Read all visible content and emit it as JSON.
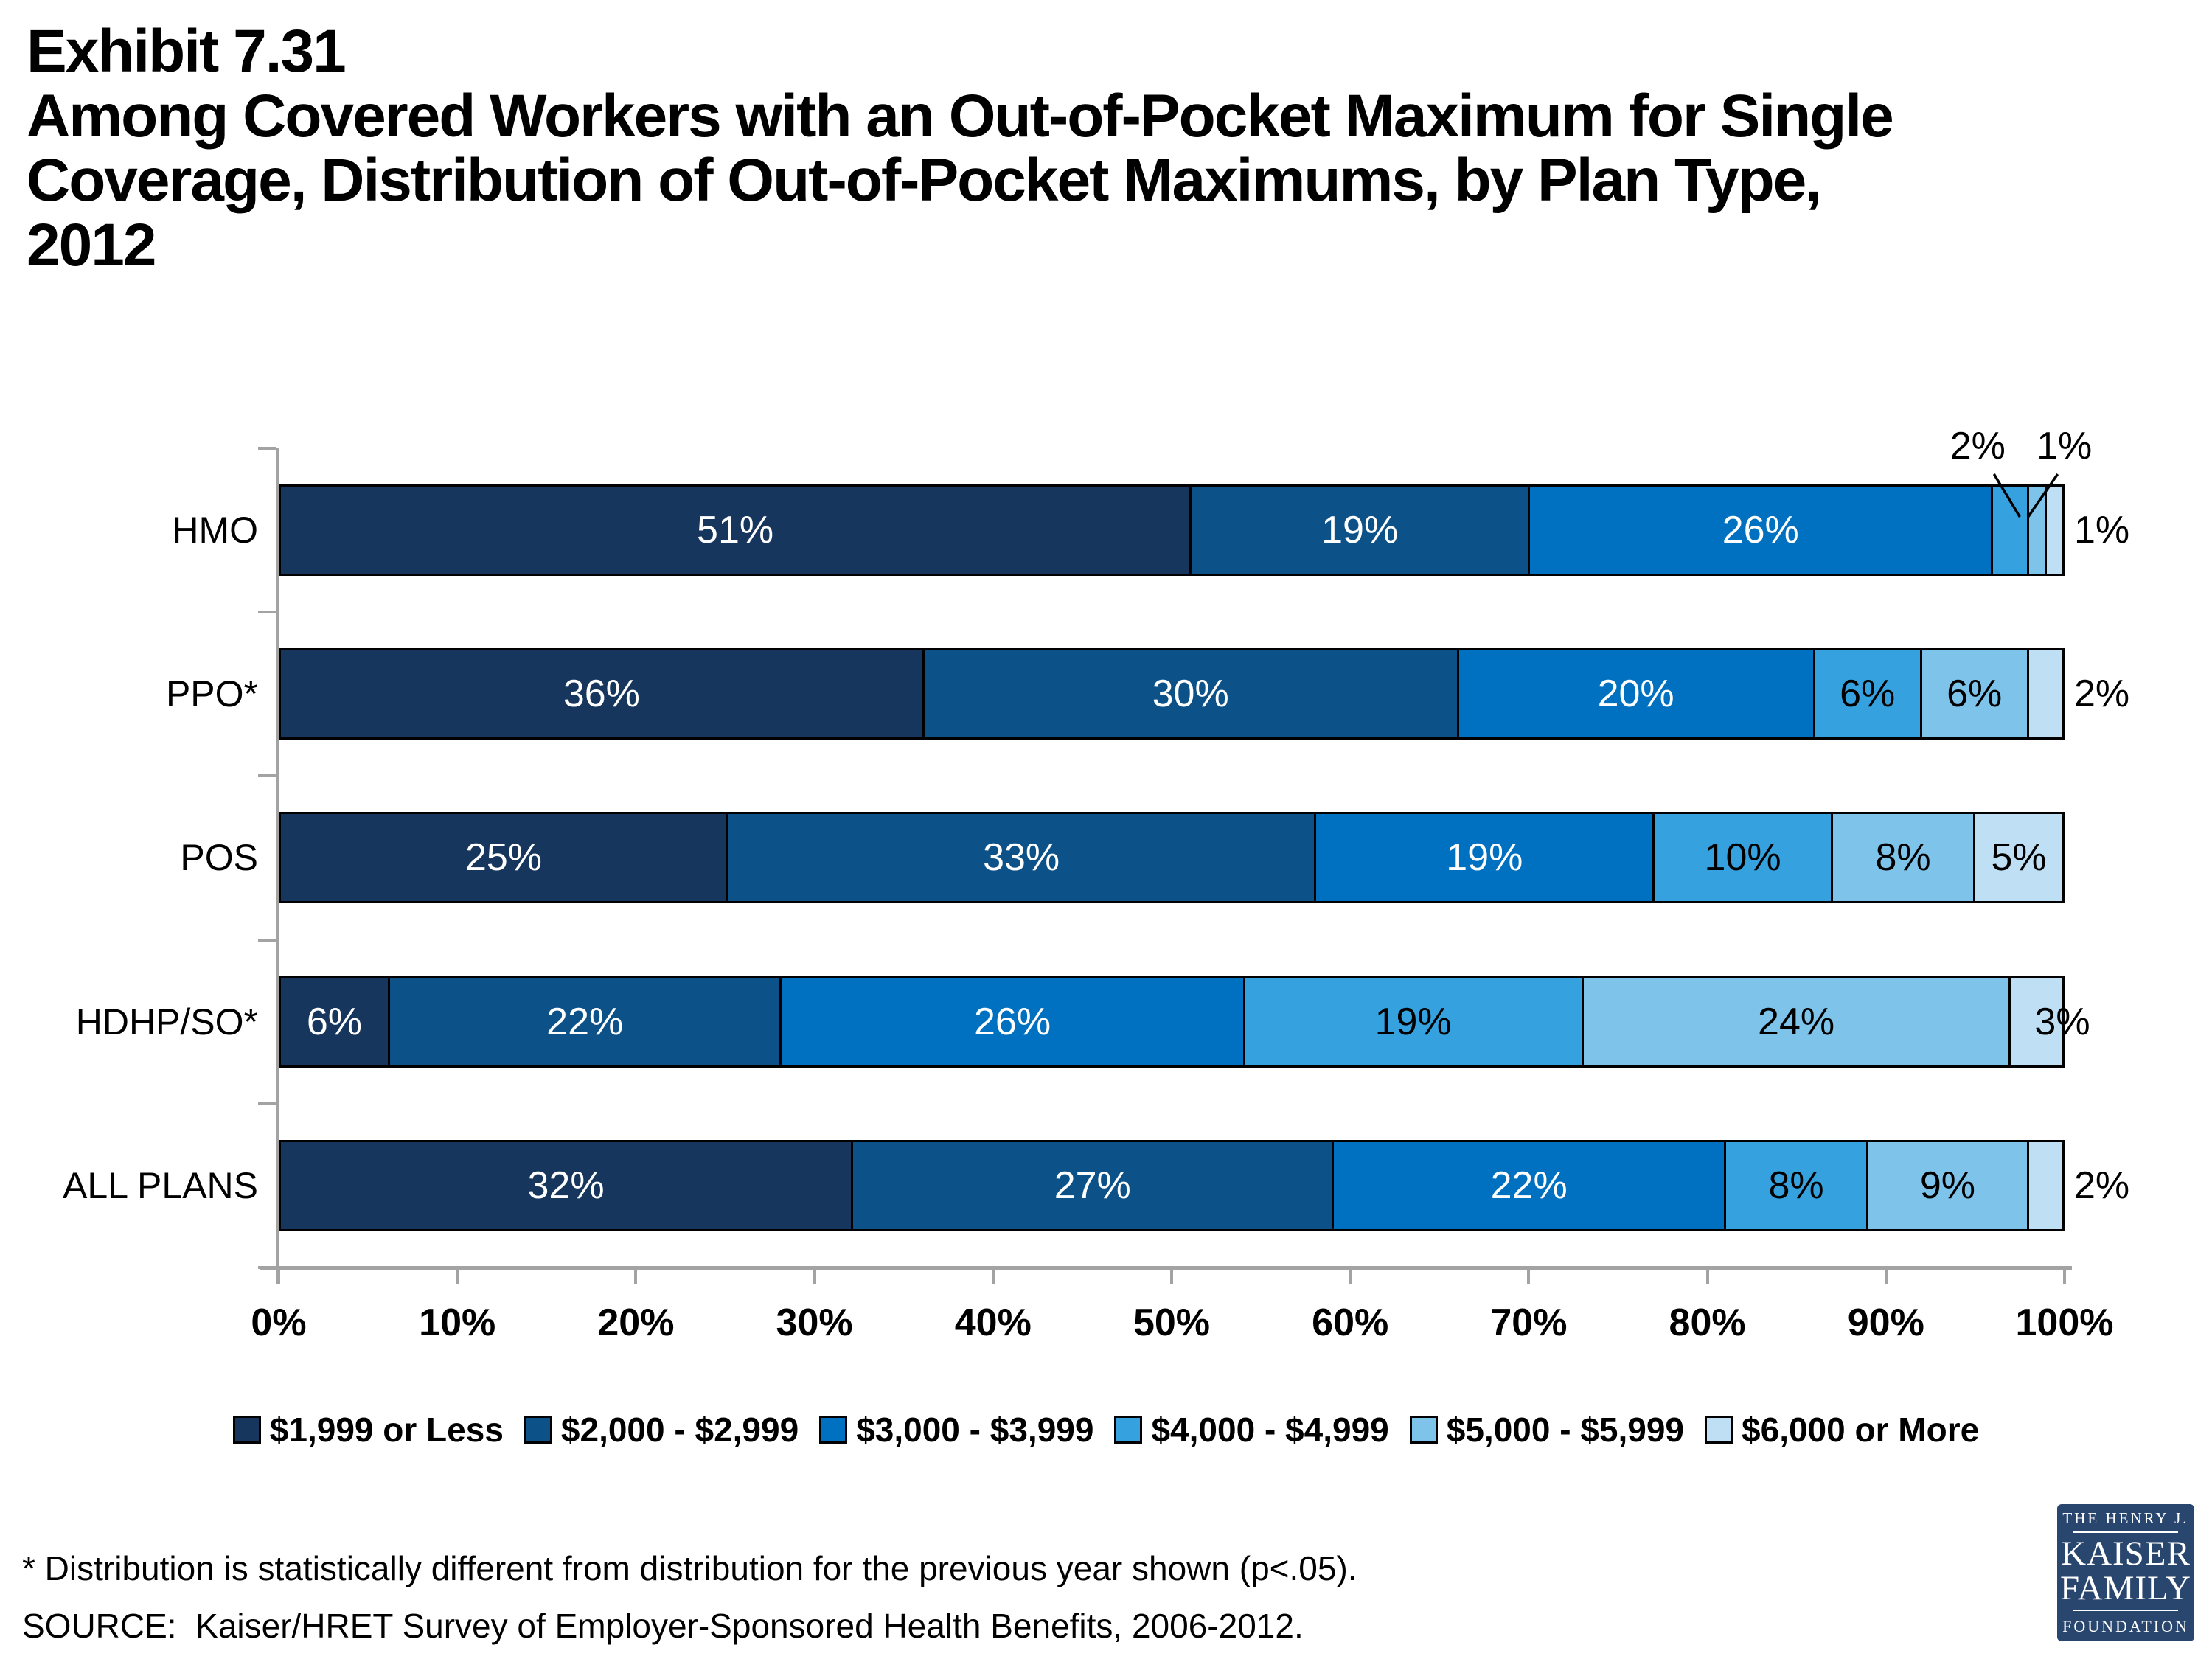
{
  "page": {
    "title_lines": [
      "Exhibit 7.31",
      "Among Covered Workers with an Out-of-Pocket Maximum for Single",
      "Coverage, Distribution of Out-of-Pocket Maximums, by Plan Type,",
      "2012"
    ],
    "footnote": "* Distribution is statistically different from distribution for the previous year shown (p<.05).",
    "source": "SOURCE:  Kaiser/HRET Survey of Employer-Sponsored Health Benefits, 2006-2012."
  },
  "logo": {
    "line1": "THE HENRY J.",
    "line2": "KAISER",
    "line3": "FAMILY",
    "line4": "FOUNDATION",
    "bg_color": "#29466E"
  },
  "chart_data": {
    "type": "bar",
    "orientation": "horizontal-stacked",
    "title": "Distribution of Out-of-Pocket Maximums for Single Coverage, by Plan Type, 2012",
    "categories": [
      "HMO",
      "PPO*",
      "POS",
      "HDHP/SO*",
      "ALL PLANS"
    ],
    "series": [
      {
        "name": "$1,999 or Less",
        "color": "#17365D",
        "label_color": "#FFFFFF",
        "values": [
          51,
          36,
          25,
          6,
          32
        ]
      },
      {
        "name": "$2,000 - $2,999",
        "color": "#0D5189",
        "label_color": "#FFFFFF",
        "values": [
          19,
          30,
          33,
          22,
          27
        ]
      },
      {
        "name": "$3,000 - $3,999",
        "color": "#0070C0",
        "label_color": "#FFFFFF",
        "values": [
          26,
          20,
          19,
          26,
          22
        ]
      },
      {
        "name": "$4,000 - $4,999",
        "color": "#35A2DF",
        "label_color": "#000000",
        "values": [
          2,
          6,
          10,
          19,
          8
        ]
      },
      {
        "name": "$5,000 - $5,999",
        "color": "#7EC3EA",
        "label_color": "#000000",
        "values": [
          1,
          6,
          8,
          24,
          9
        ]
      },
      {
        "name": "$6,000 or More",
        "color": "#BFE0F4",
        "label_color": "#000000",
        "values": [
          1,
          2,
          5,
          3,
          2
        ]
      }
    ],
    "x_ticks": [
      "0%",
      "10%",
      "20%",
      "30%",
      "40%",
      "50%",
      "60%",
      "70%",
      "80%",
      "90%",
      "100%"
    ],
    "xlim": [
      0,
      100
    ],
    "value_suffix": "%",
    "grid": false,
    "legend_position": "bottom",
    "axis_color": "#A3A3A3",
    "bar_border_color": "#000000"
  }
}
